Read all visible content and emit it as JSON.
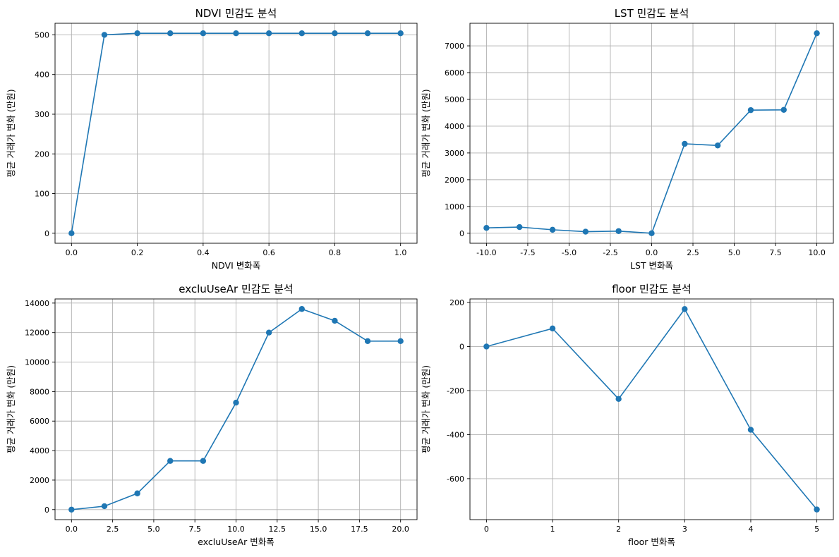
{
  "colors": {
    "series": "#1f77b4",
    "grid": "#b0b0b0"
  },
  "chart_data": [
    {
      "type": "line",
      "title": "NDVI 민감도 분석",
      "xlabel": "NDVI 변화폭",
      "ylabel": "평균 거래가 변화 (만원)",
      "grid": true,
      "xlim": [
        -0.05,
        1.05
      ],
      "ylim": [
        -25.2,
        529.2
      ],
      "xticks": [
        0.0,
        0.2,
        0.4,
        0.6,
        0.8,
        1.0
      ],
      "xtick_labels": [
        "0.0",
        "0.2",
        "0.4",
        "0.6",
        "0.8",
        "1.0"
      ],
      "yticks": [
        0,
        100,
        200,
        300,
        400,
        500
      ],
      "ytick_labels": [
        "0",
        "100",
        "200",
        "300",
        "400",
        "500"
      ],
      "x": [
        0.0,
        0.1,
        0.2,
        0.3,
        0.4,
        0.5,
        0.6,
        0.7,
        0.8,
        0.9,
        1.0
      ],
      "y": [
        0,
        500,
        504,
        504,
        504,
        504,
        504,
        504,
        504,
        504,
        504
      ]
    },
    {
      "type": "line",
      "title": "LST 민감도 분석",
      "xlabel": "LST 변화폭",
      "ylabel": "평균 거래가 변화 (만원)",
      "grid": true,
      "xlim": [
        -11,
        11
      ],
      "ylim": [
        -373.5,
        7843.5
      ],
      "xticks": [
        -10,
        -7.5,
        -5,
        -2.5,
        0,
        2.5,
        5,
        7.5,
        10
      ],
      "xtick_labels": [
        "-10.0",
        "-7.5",
        "-5.0",
        "-2.5",
        "0.0",
        "2.5",
        "5.0",
        "7.5",
        "10.0"
      ],
      "yticks": [
        0,
        1000,
        2000,
        3000,
        4000,
        5000,
        6000,
        7000
      ],
      "ytick_labels": [
        "0",
        "1000",
        "2000",
        "3000",
        "4000",
        "5000",
        "6000",
        "7000"
      ],
      "x": [
        -10,
        -8,
        -6,
        -4,
        -2,
        0,
        2,
        4,
        6,
        8,
        10
      ],
      "y": [
        200,
        230,
        130,
        60,
        80,
        0,
        3340,
        3280,
        4600,
        4610,
        7470
      ]
    },
    {
      "type": "line",
      "title": "excluUseAr 민감도 분석",
      "xlabel": "excluUseAr 변화폭",
      "ylabel": "평균 거래가 변화 (만원)",
      "grid": true,
      "xlim": [
        -1,
        21
      ],
      "ylim": [
        -680,
        14280
      ],
      "xticks": [
        0,
        2.5,
        5,
        7.5,
        10,
        12.5,
        15,
        17.5,
        20
      ],
      "xtick_labels": [
        "0.0",
        "2.5",
        "5.0",
        "7.5",
        "10.0",
        "12.5",
        "15.0",
        "17.5",
        "20.0"
      ],
      "yticks": [
        0,
        2000,
        4000,
        6000,
        8000,
        10000,
        12000,
        14000
      ],
      "ytick_labels": [
        "0",
        "2000",
        "4000",
        "6000",
        "8000",
        "10000",
        "12000",
        "14000"
      ],
      "x": [
        0,
        2,
        4,
        6,
        8,
        10,
        12,
        14,
        16,
        18,
        20
      ],
      "y": [
        0,
        230,
        1100,
        3300,
        3300,
        7250,
        12000,
        13600,
        12800,
        11420,
        11420
      ]
    },
    {
      "type": "line",
      "title": "floor 민감도 분석",
      "xlabel": "floor 변화폭",
      "ylabel": "평균 거래가 변화 (만원)",
      "grid": true,
      "xlim": [
        -0.25,
        5.25
      ],
      "ylim": [
        -786,
        216
      ],
      "xticks": [
        0,
        1,
        2,
        3,
        4,
        5
      ],
      "xtick_labels": [
        "0",
        "1",
        "2",
        "3",
        "4",
        "5"
      ],
      "yticks": [
        -600,
        -400,
        -200,
        0,
        200
      ],
      "ytick_labels": [
        "-600",
        "-400",
        "-200",
        "0",
        "200"
      ],
      "x": [
        0,
        1,
        2,
        3,
        4,
        5
      ],
      "y": [
        0,
        82,
        -238,
        170,
        -378,
        -740
      ]
    }
  ]
}
